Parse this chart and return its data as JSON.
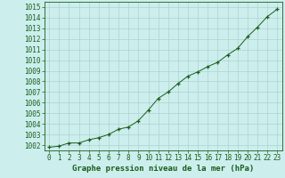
{
  "x": [
    0,
    1,
    2,
    3,
    4,
    5,
    6,
    7,
    8,
    9,
    10,
    11,
    12,
    13,
    14,
    15,
    16,
    17,
    18,
    19,
    20,
    21,
    22,
    23
  ],
  "y": [
    1001.8,
    1001.9,
    1002.2,
    1002.2,
    1002.5,
    1002.7,
    1003.0,
    1003.5,
    1003.7,
    1004.3,
    1005.3,
    1006.4,
    1007.0,
    1007.8,
    1008.5,
    1008.9,
    1009.4,
    1009.8,
    1010.5,
    1011.1,
    1012.2,
    1013.1,
    1014.1,
    1014.8
  ],
  "ylim": [
    1001.5,
    1015.5
  ],
  "xlim": [
    -0.5,
    23.5
  ],
  "yticks": [
    1002,
    1003,
    1004,
    1005,
    1006,
    1007,
    1008,
    1009,
    1010,
    1011,
    1012,
    1013,
    1014,
    1015
  ],
  "xticks": [
    0,
    1,
    2,
    3,
    4,
    5,
    6,
    7,
    8,
    9,
    10,
    11,
    12,
    13,
    14,
    15,
    16,
    17,
    18,
    19,
    20,
    21,
    22,
    23
  ],
  "line_color": "#1a5c1a",
  "marker_color": "#1a5c1a",
  "bg_plot": "#cceeed",
  "bg_fig": "#cceeed",
  "grid_color": "#add4d0",
  "xlabel": "Graphe pression niveau de la mer (hPa)",
  "title_color": "#1a5c1a",
  "tick_color": "#1a5c1a",
  "label_fontsize": 6.5,
  "tick_fontsize": 5.5
}
